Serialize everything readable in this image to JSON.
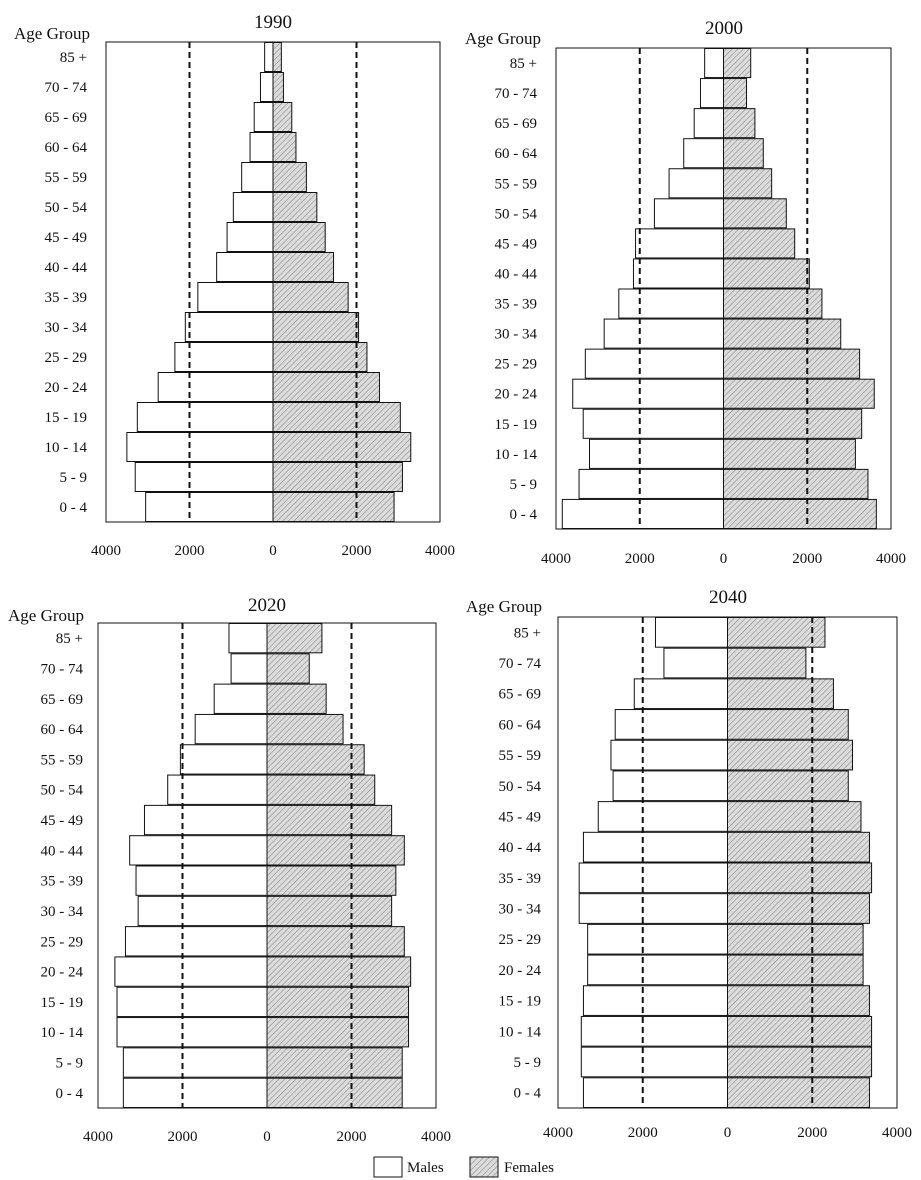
{
  "legend": {
    "males": "Males",
    "females": "Females"
  },
  "colors": {
    "male_fill": "#ffffff",
    "female_fill": "#d4d4d4",
    "stroke": "#111111"
  },
  "chart_data": [
    {
      "type": "bar",
      "orientation": "horizontal-pyramid",
      "title": "1990",
      "ylabel": "Age Group",
      "categories": [
        "0 - 4",
        "5 - 9",
        "10 - 14",
        "15 - 19",
        "20 - 24",
        "25 - 29",
        "30 - 34",
        "35 - 39",
        "40 - 44",
        "45 - 49",
        "50 - 54",
        "55 - 59",
        "60 - 64",
        "65 - 69",
        "70 - 74",
        "85 +"
      ],
      "xtick_labels": [
        "4000",
        "2000",
        "0",
        "2000",
        "4000"
      ],
      "xlim": [
        -4000,
        4000
      ],
      "reference_lines": [
        -2000,
        2000
      ],
      "series": [
        {
          "name": "Males",
          "values": [
            3050,
            3300,
            3500,
            3250,
            2750,
            2350,
            2100,
            1800,
            1350,
            1100,
            950,
            750,
            550,
            450,
            300,
            200
          ]
        },
        {
          "name": "Females",
          "values": [
            2900,
            3100,
            3300,
            3050,
            2550,
            2250,
            2050,
            1800,
            1450,
            1250,
            1050,
            800,
            550,
            450,
            250,
            200
          ]
        }
      ]
    },
    {
      "type": "bar",
      "orientation": "horizontal-pyramid",
      "title": "2000",
      "ylabel": "Age Group",
      "categories": [
        "0 - 4",
        "5 - 9",
        "10 - 14",
        "15 - 19",
        "20 - 24",
        "25 - 29",
        "30 - 34",
        "35 - 39",
        "40 - 44",
        "45 - 49",
        "50 - 54",
        "55 - 59",
        "60 - 64",
        "65 - 69",
        "70 - 74",
        "85 +"
      ],
      "xtick_labels": [
        "4000",
        "2000",
        "0",
        "2000",
        "4000"
      ],
      "xlim": [
        -4000,
        4000
      ],
      "reference_lines": [
        -2000,
        2000
      ],
      "series": [
        {
          "name": "Males",
          "values": [
            3850,
            3450,
            3200,
            3350,
            3600,
            3300,
            2850,
            2500,
            2150,
            2100,
            1650,
            1300,
            950,
            700,
            550,
            450
          ]
        },
        {
          "name": "Females",
          "values": [
            3650,
            3450,
            3150,
            3300,
            3600,
            3250,
            2800,
            2350,
            2050,
            1700,
            1500,
            1150,
            950,
            750,
            550,
            650
          ]
        }
      ]
    },
    {
      "type": "bar",
      "orientation": "horizontal-pyramid",
      "title": "2020",
      "ylabel": "Age Group",
      "categories": [
        "0 - 4",
        "5 - 9",
        "10 - 14",
        "15 - 19",
        "20 - 24",
        "25 - 29",
        "30 - 34",
        "35 - 39",
        "40 - 44",
        "45 - 49",
        "50 - 54",
        "55 - 59",
        "60 - 64",
        "65 - 69",
        "70 - 74",
        "85 +"
      ],
      "xtick_labels": [
        "4000",
        "2000",
        "0",
        "2000",
        "4000"
      ],
      "xlim": [
        -4000,
        4000
      ],
      "reference_lines": [
        -2000,
        2000
      ],
      "series": [
        {
          "name": "Males",
          "values": [
            3400,
            3400,
            3550,
            3550,
            3600,
            3350,
            3050,
            3100,
            3250,
            2900,
            2350,
            2050,
            1700,
            1250,
            850,
            900
          ]
        },
        {
          "name": "Females",
          "values": [
            3200,
            3200,
            3350,
            3350,
            3400,
            3250,
            2950,
            3050,
            3250,
            2950,
            2550,
            2300,
            1800,
            1400,
            1000,
            1300
          ]
        }
      ]
    },
    {
      "type": "bar",
      "orientation": "horizontal-pyramid",
      "title": "2040",
      "ylabel": "Age Group",
      "categories": [
        "0 - 4",
        "5 - 9",
        "10 - 14",
        "15 - 19",
        "20 - 24",
        "25 - 29",
        "30 - 34",
        "35 - 39",
        "40 - 44",
        "45 - 49",
        "50 - 54",
        "55 - 59",
        "60 - 64",
        "65 - 69",
        "70 - 74",
        "85 +"
      ],
      "xtick_labels": [
        "4000",
        "2000",
        "0",
        "2000",
        "4000"
      ],
      "xlim": [
        -4000,
        4000
      ],
      "reference_lines": [
        -2000,
        2000
      ],
      "series": [
        {
          "name": "Males",
          "values": [
            3400,
            3450,
            3450,
            3400,
            3300,
            3300,
            3500,
            3500,
            3400,
            3050,
            2700,
            2750,
            2650,
            2200,
            1500,
            1700
          ]
        },
        {
          "name": "Females",
          "values": [
            3350,
            3400,
            3400,
            3350,
            3200,
            3200,
            3350,
            3400,
            3350,
            3150,
            2850,
            2950,
            2850,
            2500,
            1850,
            2300
          ]
        }
      ]
    }
  ]
}
